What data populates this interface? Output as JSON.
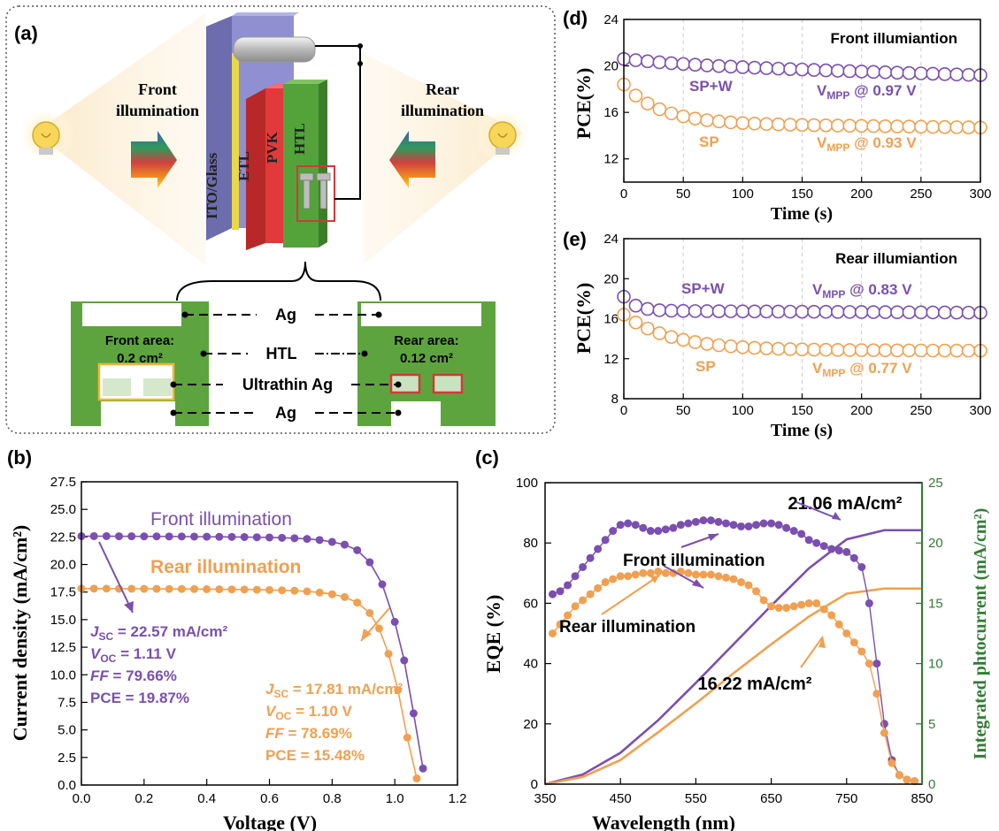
{
  "colors": {
    "purple": "#7a4fb0",
    "orange": "#f0a050",
    "green": "#59a336",
    "green_axis": "#2f7d32",
    "ag_outline": "#f2b534",
    "ultrathin_outline": "#d03a3a"
  },
  "panel_a": {
    "label": "(a)",
    "front_title": [
      "Front",
      "illumination"
    ],
    "rear_title": [
      "Rear",
      "illumination"
    ],
    "layers": [
      "ITO/Glass",
      "ETL",
      "PVK",
      "HTL"
    ],
    "front_area": [
      "Front area:",
      "0.2 cm²"
    ],
    "rear_area": [
      "Rear area:",
      "0.12 cm²"
    ],
    "callouts": [
      "Ag",
      "HTL",
      "Ultrathin Ag",
      "Ag"
    ],
    "icons": [
      "bulb-icon",
      "arrow-right-icon",
      "arrow-left-icon"
    ]
  },
  "chart_data": [
    {
      "id": "b",
      "panel_label": "(b)",
      "type": "line",
      "xlabel": "Voltage (V)",
      "ylabel": "Current density (mA/cm²)",
      "xlim": [
        0,
        1.2
      ],
      "ylim": [
        0,
        27.5
      ],
      "xticks": [
        "0.0",
        "0.2",
        "0.4",
        "0.6",
        "0.8",
        "1.0",
        "1.2"
      ],
      "yticks": [
        "0.0",
        "2.5",
        "5.0",
        "7.5",
        "10.0",
        "12.5",
        "15.0",
        "17.5",
        "20.0",
        "22.5",
        "25.0",
        "27.5"
      ],
      "series": [
        {
          "name": "Front illumination",
          "color": "#7a4fb0",
          "x": [
            0,
            0.04,
            0.08,
            0.12,
            0.16,
            0.2,
            0.24,
            0.28,
            0.32,
            0.36,
            0.4,
            0.44,
            0.48,
            0.52,
            0.56,
            0.6,
            0.64,
            0.68,
            0.72,
            0.76,
            0.8,
            0.84,
            0.88,
            0.92,
            0.96,
            1.0,
            1.03,
            1.06,
            1.09
          ],
          "y": [
            22.57,
            22.57,
            22.57,
            22.56,
            22.56,
            22.55,
            22.55,
            22.54,
            22.54,
            22.53,
            22.52,
            22.51,
            22.5,
            22.49,
            22.47,
            22.45,
            22.42,
            22.38,
            22.32,
            22.22,
            22.05,
            21.8,
            21.3,
            20.2,
            18.2,
            14.8,
            11.3,
            6.5,
            1.5
          ]
        },
        {
          "name": "Rear illumination",
          "color": "#f0a050",
          "x": [
            0,
            0.04,
            0.08,
            0.12,
            0.16,
            0.2,
            0.24,
            0.28,
            0.32,
            0.36,
            0.4,
            0.44,
            0.48,
            0.52,
            0.56,
            0.6,
            0.64,
            0.68,
            0.72,
            0.76,
            0.8,
            0.84,
            0.88,
            0.92,
            0.95,
            0.98,
            1.01,
            1.04,
            1.07
          ],
          "y": [
            17.81,
            17.81,
            17.81,
            17.8,
            17.8,
            17.79,
            17.79,
            17.78,
            17.78,
            17.77,
            17.76,
            17.75,
            17.74,
            17.73,
            17.71,
            17.69,
            17.66,
            17.62,
            17.56,
            17.46,
            17.3,
            17.05,
            16.55,
            15.6,
            14.2,
            11.9,
            8.6,
            4.3,
            0.6
          ]
        }
      ],
      "legend_labels": [
        "Front illumination",
        "Rear illumination"
      ],
      "annotations": {
        "front": [
          {
            "prefix": "J",
            "sub": "SC",
            "rest": " = 22.57 mA/cm²"
          },
          {
            "prefix": "V",
            "sub": "OC",
            "rest": " = 1.11 V"
          },
          {
            "prefix": "FF",
            "sub": "",
            "rest": " = 79.66%"
          },
          {
            "prefix": "",
            "sub": "",
            "rest": "PCE = 19.87%"
          }
        ],
        "rear": [
          {
            "prefix": "J",
            "sub": "SC",
            "rest": " = 17.81 mA/cm²"
          },
          {
            "prefix": "V",
            "sub": "OC",
            "rest": " = 1.10 V"
          },
          {
            "prefix": "FF",
            "sub": "",
            "rest": " = 78.69%"
          },
          {
            "prefix": "",
            "sub": "",
            "rest": "PCE = 15.48%"
          }
        ]
      }
    },
    {
      "id": "c",
      "panel_label": "(c)",
      "type": "line",
      "xlabel": "Wavelength (nm)",
      "ylabel": "EQE (%)",
      "y2label": "Integrated phtocurrent (mA/cm²)",
      "xlim": [
        350,
        850
      ],
      "ylim": [
        0,
        100
      ],
      "y2lim": [
        0,
        25
      ],
      "xticks": [
        "350",
        "450",
        "550",
        "650",
        "750",
        "850"
      ],
      "yticks": [
        "0",
        "20",
        "40",
        "60",
        "80",
        "100"
      ],
      "y2ticks": [
        "0",
        "5",
        "10",
        "15",
        "20",
        "25"
      ],
      "eqe_series": [
        {
          "name": "Front illumination",
          "color": "#7a4fb0",
          "x": [
            360,
            370,
            380,
            390,
            400,
            410,
            420,
            430,
            440,
            450,
            460,
            470,
            480,
            490,
            500,
            510,
            520,
            530,
            540,
            550,
            560,
            570,
            580,
            590,
            600,
            610,
            620,
            630,
            640,
            650,
            660,
            670,
            680,
            690,
            700,
            710,
            720,
            730,
            740,
            750,
            760,
            770,
            780,
            790,
            800,
            810,
            820,
            830,
            840
          ],
          "y": [
            63,
            64,
            66,
            69,
            72,
            75,
            78,
            81,
            84,
            86,
            86.5,
            86,
            85,
            84,
            84,
            84.5,
            85,
            86,
            86.5,
            87,
            87.5,
            87.5,
            87,
            86.5,
            86,
            85.5,
            85.5,
            86,
            86.5,
            86.5,
            86,
            85,
            84,
            83,
            81,
            80,
            79,
            78,
            77.5,
            77,
            75,
            72,
            60,
            40,
            20,
            8,
            3,
            1.5,
            1
          ]
        },
        {
          "name": "Rear illumination",
          "color": "#f0a050",
          "x": [
            360,
            370,
            380,
            390,
            400,
            410,
            420,
            430,
            440,
            450,
            460,
            470,
            480,
            490,
            500,
            510,
            520,
            530,
            540,
            550,
            560,
            570,
            580,
            590,
            600,
            610,
            620,
            630,
            640,
            650,
            660,
            670,
            680,
            690,
            700,
            710,
            720,
            730,
            740,
            750,
            760,
            770,
            780,
            790,
            800,
            810,
            820,
            830,
            840
          ],
          "y": [
            50,
            53,
            56,
            59,
            61,
            63,
            65,
            67,
            68,
            69,
            69,
            69.5,
            70,
            70,
            70.5,
            70,
            70,
            70.5,
            70,
            69.5,
            69.5,
            69.5,
            69,
            68.5,
            68,
            67,
            66,
            64,
            61,
            59,
            58.5,
            58.5,
            59,
            59.5,
            60,
            60,
            58,
            56,
            53,
            50,
            47,
            44,
            40,
            30,
            17,
            7,
            3,
            1.5,
            1
          ]
        }
      ],
      "jsc_series": [
        {
          "name": "Front illumination",
          "color": "#7a4fb0",
          "x": [
            350,
            400,
            450,
            500,
            550,
            600,
            650,
            700,
            750,
            800,
            850
          ],
          "y": [
            0,
            0.8,
            2.6,
            5.3,
            8.4,
            11.6,
            14.8,
            17.9,
            20.3,
            21.06,
            21.06
          ]
        },
        {
          "name": "Rear illumination",
          "color": "#f0a050",
          "x": [
            350,
            400,
            450,
            500,
            550,
            600,
            650,
            700,
            750,
            800,
            850
          ],
          "y": [
            0,
            0.6,
            2.0,
            4.3,
            6.7,
            9.2,
            11.6,
            13.9,
            15.8,
            16.22,
            16.22
          ]
        }
      ],
      "annotations": [
        "Front illumination",
        "Rear illumination",
        "21.06 mA/cm²",
        "16.22 mA/cm²"
      ]
    },
    {
      "id": "d",
      "panel_label": "(d)",
      "type": "scatter",
      "title": "Front illumiantion",
      "xlabel": "Time (s)",
      "ylabel": "PCE(%)",
      "xlim": [
        0,
        300
      ],
      "ylim": [
        10,
        24
      ],
      "xticks": [
        "0",
        "50",
        "100",
        "150",
        "200",
        "250",
        "300"
      ],
      "yticks": [
        "12",
        "16",
        "20",
        "24"
      ],
      "grid": "vertical dashed",
      "series": [
        {
          "name": "SP+W",
          "color": "#7a4fb0",
          "label": "V",
          "label_sub": "MPP",
          "label_rest": " @ 0.97 V",
          "start": 20.6,
          "end": 19.2,
          "tau": 60,
          "level": 20.1
        },
        {
          "name": "SP",
          "color": "#f0a050",
          "label": "V",
          "label_sub": "MPP",
          "label_rest": " @ 0.93 V",
          "start": 18.4,
          "end": 14.7,
          "tau": 30,
          "level": 15.1
        }
      ]
    },
    {
      "id": "e",
      "panel_label": "(e)",
      "type": "scatter",
      "title": "Rear illumiantion",
      "xlabel": "Time (s)",
      "ylabel": "PCE(%)",
      "xlim": [
        0,
        300
      ],
      "ylim": [
        8,
        24
      ],
      "xticks": [
        "0",
        "50",
        "100",
        "150",
        "200",
        "250",
        "300"
      ],
      "yticks": [
        "8",
        "12",
        "16",
        "20",
        "24"
      ],
      "grid": "vertical dashed",
      "series": [
        {
          "name": "SP+W",
          "color": "#7a4fb0",
          "label": "V",
          "label_sub": "MPP",
          "label_rest": " @ 0.83 V",
          "start": 18.2,
          "end": 16.6,
          "tau": 10,
          "level": 16.8
        },
        {
          "name": "SP",
          "color": "#f0a050",
          "label": "V",
          "label_sub": "MPP",
          "label_rest": " @ 0.77 V",
          "start": 16.4,
          "end": 12.8,
          "tau": 40,
          "level": 12.9
        }
      ]
    }
  ]
}
